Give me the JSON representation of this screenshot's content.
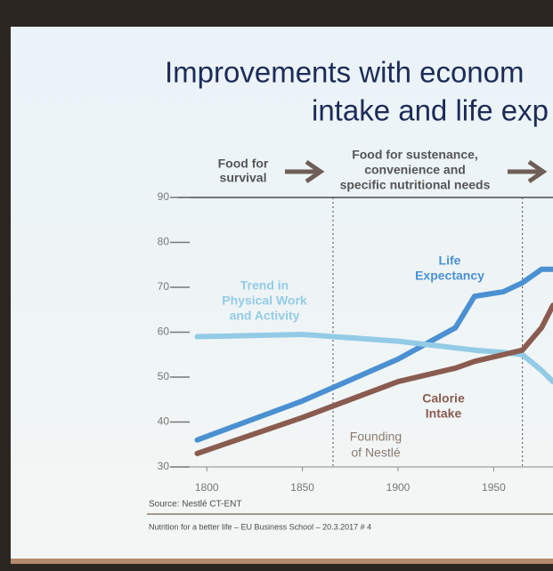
{
  "chart_data": {
    "type": "line",
    "title": [
      "Improvements with econom",
      "intake and life exp"
    ],
    "phases": [
      [
        "Food for",
        "survival"
      ],
      [
        "Food for sustenance,",
        "convenience and",
        "specific nutritional needs"
      ]
    ],
    "x": [
      1795,
      1850,
      1900,
      1930,
      1940,
      1955,
      1965,
      1975,
      1981
    ],
    "series": [
      {
        "name": [
          "Life",
          "Expectancy"
        ],
        "color": "#4a90d2",
        "values": [
          36,
          44.7,
          54,
          61,
          68,
          69,
          71,
          74,
          74
        ]
      },
      {
        "name": [
          "Trend in",
          "Physical Work",
          "and Activity"
        ],
        "color": "#93cbe6",
        "values": [
          59,
          59.5,
          58,
          56.5,
          56,
          55.5,
          55,
          51.5,
          49
        ]
      },
      {
        "name": [
          "Calorie",
          "Intake"
        ],
        "color": "#8a5c50",
        "values": [
          33,
          41,
          49,
          52,
          53.5,
          55,
          56,
          61,
          66
        ]
      }
    ],
    "xlim": [
      1785,
      1981
    ],
    "xticks": [
      1800,
      1850,
      1900,
      1950
    ],
    "ylim": [
      30,
      90
    ],
    "yticks": [
      30,
      40,
      50,
      60,
      70,
      80,
      90
    ],
    "vlines": [
      1866,
      1965
    ],
    "annotation": [
      "Founding",
      "of Nestlé"
    ],
    "source": "Source: Nestlé CT-ENT",
    "footer": "Nutrition for a better life – EU Business School – 20.3.2017 # 4"
  }
}
